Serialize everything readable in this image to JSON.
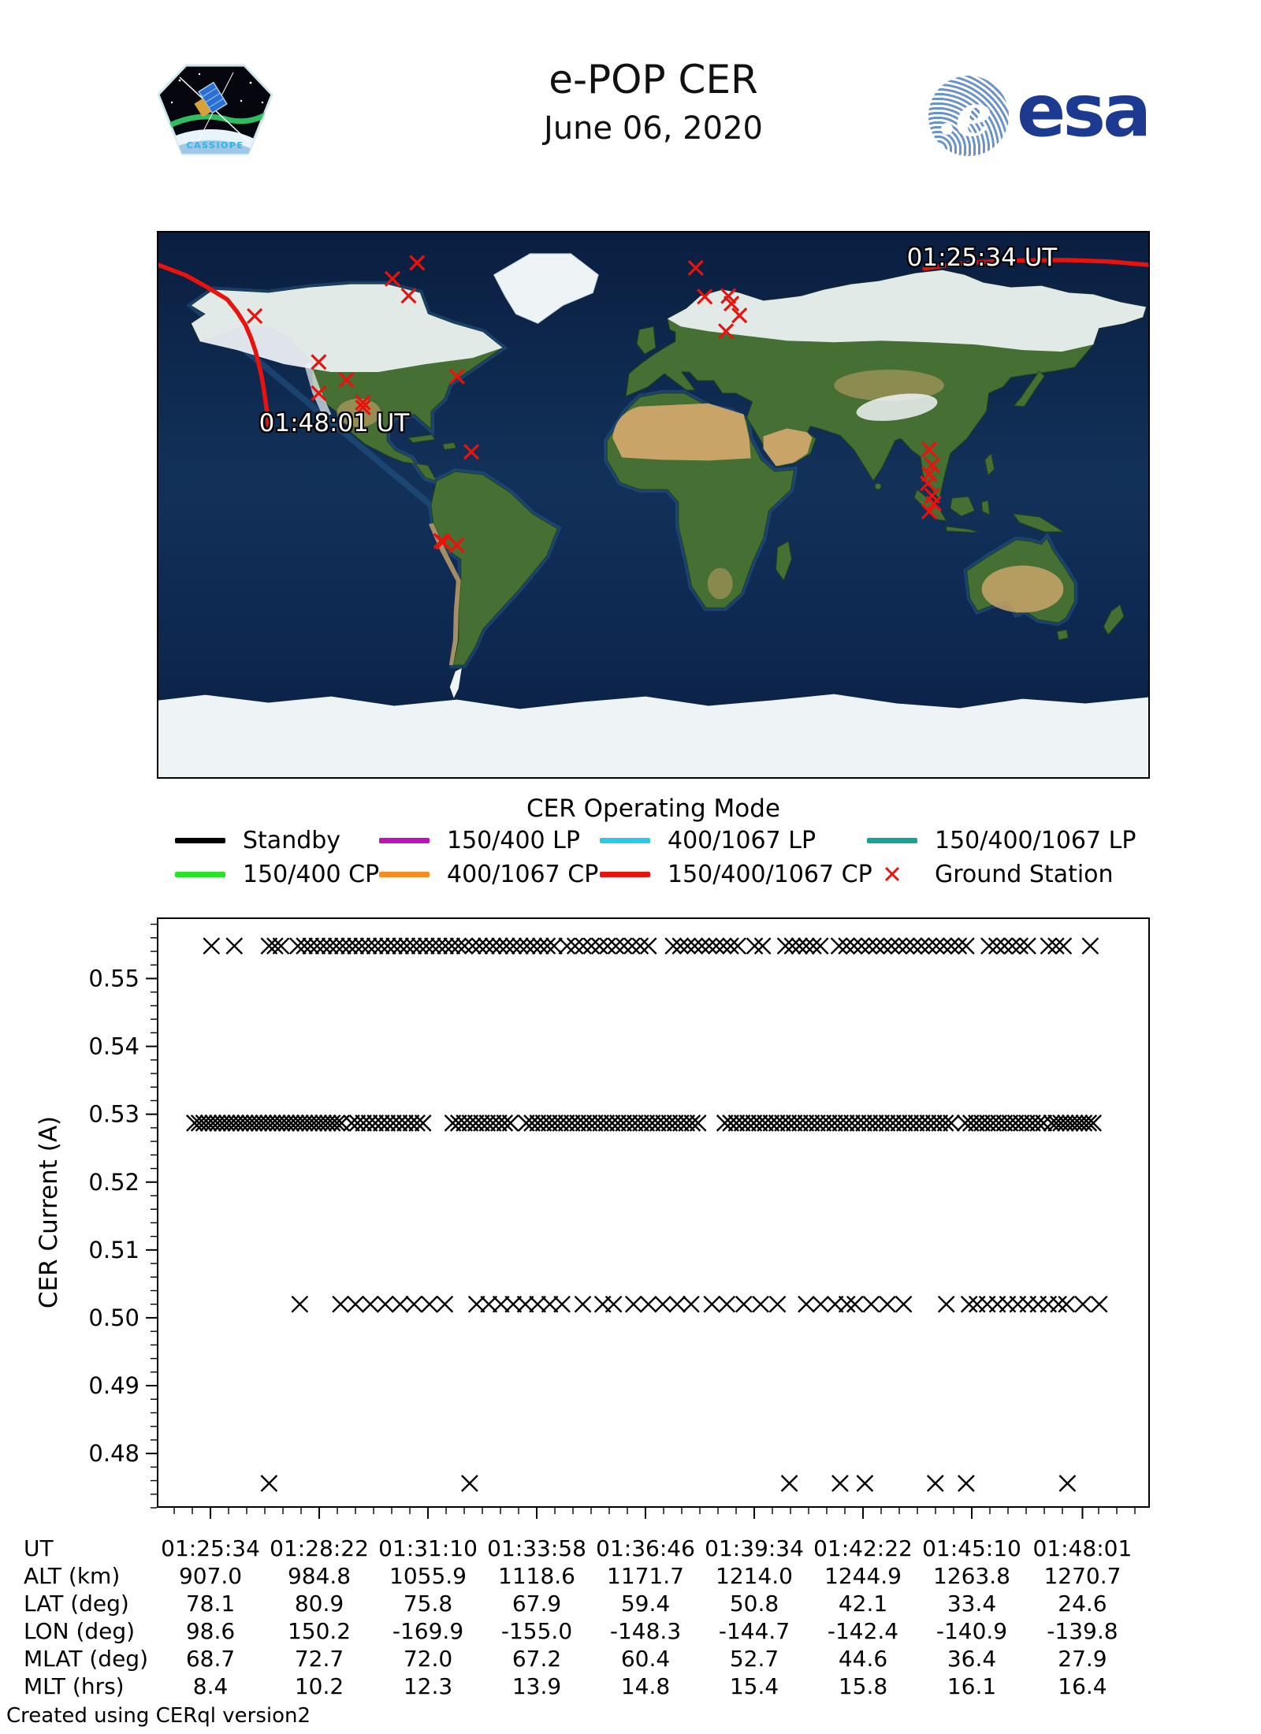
{
  "header": {
    "title": "e-POP CER",
    "date": "June 06, 2020"
  },
  "patch": {
    "label": "CASSIOPE"
  },
  "esa": {
    "label": "esa",
    "brand_blue": "#1c3a90"
  },
  "map": {
    "start_label": "01:25:34 UT",
    "end_label": "01:48:01 UT",
    "track_color": "#e8130c",
    "ground_station_color": "#e8130c",
    "ground_stations_lonlat": [
      [
        -85.9,
        80.0
      ],
      [
        -94.9,
        74.7
      ],
      [
        -89.0,
        69.1
      ],
      [
        -145.0,
        62.4
      ],
      [
        15.4,
        78.3
      ],
      [
        18.7,
        68.8
      ],
      [
        27.3,
        69.0
      ],
      [
        28.4,
        66.5
      ],
      [
        31.3,
        62.6
      ],
      [
        26.4,
        57.4
      ],
      [
        -121.7,
        47.2
      ],
      [
        -111.6,
        41.3
      ],
      [
        -71.4,
        42.4
      ],
      [
        -121.7,
        36.9
      ],
      [
        -105.6,
        33.8
      ],
      [
        -105.6,
        32.2
      ],
      [
        -66.2,
        17.5
      ],
      [
        -77.2,
        -11.9
      ],
      [
        -76.4,
        -12.3
      ],
      [
        -71.5,
        -13.3
      ],
      [
        100.3,
        18.3
      ],
      [
        101.4,
        13.1
      ],
      [
        100.3,
        10.2
      ],
      [
        99.8,
        7.1
      ],
      [
        101.4,
        3.0
      ],
      [
        102.0,
        0.4
      ],
      [
        100.3,
        -2.2
      ]
    ],
    "track_segments_lonlat": [
      [
        [
          98.6,
          78.1
        ],
        [
          112,
          79.8
        ],
        [
          128,
          80.7
        ],
        [
          150.2,
          80.9
        ],
        [
          166,
          80.4
        ],
        [
          180,
          79.3
        ]
      ],
      [
        [
          -180,
          79.3
        ],
        [
          -169.9,
          75.8
        ],
        [
          -162,
          71.8
        ],
        [
          -155.0,
          67.9
        ],
        [
          -151.3,
          63.7
        ],
        [
          -148.3,
          59.4
        ],
        [
          -146.3,
          55.1
        ],
        [
          -144.7,
          50.8
        ],
        [
          -143.5,
          46.5
        ],
        [
          -142.4,
          42.1
        ],
        [
          -141.6,
          37.8
        ],
        [
          -140.9,
          33.4
        ],
        [
          -140.3,
          29.0
        ],
        [
          -139.8,
          24.6
        ]
      ]
    ]
  },
  "legend": {
    "title": "CER Operating Mode",
    "items": [
      {
        "label": "Standby",
        "color": "#000000",
        "kind": "line"
      },
      {
        "label": "150/400 LP",
        "color": "#bb12bb",
        "kind": "line"
      },
      {
        "label": "400/1067 LP",
        "color": "#2cc8e8",
        "kind": "line"
      },
      {
        "label": "150/400/1067 LP",
        "color": "#17a398",
        "kind": "line"
      },
      {
        "label": "150/400 CP",
        "color": "#27e427",
        "kind": "line"
      },
      {
        "label": "400/1067 CP",
        "color": "#f68b1f",
        "kind": "line"
      },
      {
        "label": "150/400/1067 CP",
        "color": "#e8130c",
        "kind": "line"
      },
      {
        "label": "Ground Station",
        "color": "#e8130c",
        "kind": "marker"
      }
    ]
  },
  "chart_data": {
    "type": "scatter",
    "marker": "x",
    "marker_color": "#000000",
    "title": "",
    "xlabel": "",
    "ylabel": "CER Current (A)",
    "ylim": [
      0.472,
      0.559
    ],
    "yticks": [
      0.48,
      0.49,
      0.5,
      0.51,
      0.52,
      0.53,
      0.54,
      0.55
    ],
    "y_minor_step": 0.002,
    "grid": false,
    "x_tick_labels": [
      "01:25:34",
      "01:28:22",
      "01:31:10",
      "01:33:58",
      "01:36:46",
      "01:39:34",
      "01:42:22",
      "01:45:10",
      "01:48:01"
    ],
    "bands": [
      {
        "current": 0.5548,
        "clusters": [
          [
            0.055,
            0.055,
            1
          ],
          [
            0.078,
            0.078,
            1
          ],
          [
            0.113,
            0.125,
            3
          ],
          [
            0.142,
            0.31,
            27
          ],
          [
            0.318,
            0.4,
            13
          ],
          [
            0.413,
            0.495,
            11
          ],
          [
            0.52,
            0.585,
            10
          ],
          [
            0.602,
            0.61,
            2
          ],
          [
            0.633,
            0.668,
            6
          ],
          [
            0.687,
            0.815,
            18
          ],
          [
            0.838,
            0.877,
            6
          ],
          [
            0.898,
            0.913,
            3
          ],
          [
            0.94,
            0.94,
            1
          ]
        ]
      },
      {
        "current": 0.5287,
        "clusters": [
          [
            0.038,
            0.186,
            33
          ],
          [
            0.196,
            0.268,
            13
          ],
          [
            0.298,
            0.356,
            11
          ],
          [
            0.372,
            0.545,
            31
          ],
          [
            0.572,
            0.7,
            23
          ],
          [
            0.706,
            0.8,
            17
          ],
          [
            0.814,
            0.893,
            15
          ],
          [
            0.901,
            0.943,
            10
          ]
        ]
      },
      {
        "current": 0.502,
        "clusters": [
          [
            0.144,
            0.144,
            1
          ],
          [
            0.185,
            0.245,
            5
          ],
          [
            0.259,
            0.29,
            3
          ],
          [
            0.322,
            0.408,
            8
          ],
          [
            0.429,
            0.449,
            2
          ],
          [
            0.46,
            0.48,
            2
          ],
          [
            0.495,
            0.524,
            3
          ],
          [
            0.538,
            0.559,
            2
          ],
          [
            0.574,
            0.625,
            4
          ],
          [
            0.654,
            0.683,
            3
          ],
          [
            0.695,
            0.695,
            1
          ],
          [
            0.703,
            0.752,
            4
          ],
          [
            0.795,
            0.818,
            2
          ],
          [
            0.826,
            0.908,
            9
          ],
          [
            0.916,
            0.949,
            3
          ]
        ]
      },
      {
        "current": 0.4756,
        "clusters": [
          [
            0.113,
            0.113,
            1
          ],
          [
            0.315,
            0.315,
            1
          ],
          [
            0.637,
            0.637,
            1
          ],
          [
            0.688,
            0.688,
            1
          ],
          [
            0.713,
            0.713,
            1
          ],
          [
            0.784,
            0.784,
            1
          ],
          [
            0.815,
            0.815,
            1
          ],
          [
            0.917,
            0.917,
            1
          ]
        ]
      }
    ]
  },
  "table": {
    "rows": [
      {
        "label": "UT",
        "values": [
          "01:25:34",
          "01:28:22",
          "01:31:10",
          "01:33:58",
          "01:36:46",
          "01:39:34",
          "01:42:22",
          "01:45:10",
          "01:48:01"
        ]
      },
      {
        "label": "ALT (km)",
        "values": [
          "907.0",
          "984.8",
          "1055.9",
          "1118.6",
          "1171.7",
          "1214.0",
          "1244.9",
          "1263.8",
          "1270.7"
        ]
      },
      {
        "label": "LAT (deg)",
        "values": [
          "78.1",
          "80.9",
          "75.8",
          "67.9",
          "59.4",
          "50.8",
          "42.1",
          "33.4",
          "24.6"
        ]
      },
      {
        "label": "LON (deg)",
        "values": [
          "98.6",
          "150.2",
          "-169.9",
          "-155.0",
          "-148.3",
          "-144.7",
          "-142.4",
          "-140.9",
          "-139.8"
        ]
      },
      {
        "label": "MLAT (deg)",
        "values": [
          "68.7",
          "72.7",
          "72.0",
          "67.2",
          "60.4",
          "52.7",
          "44.6",
          "36.4",
          "27.9"
        ]
      },
      {
        "label": "MLT (hrs)",
        "values": [
          "8.4",
          "10.2",
          "12.3",
          "13.9",
          "14.8",
          "15.4",
          "15.8",
          "16.1",
          "16.4"
        ]
      }
    ]
  },
  "footer": {
    "credit": "Created using CERql version2"
  }
}
